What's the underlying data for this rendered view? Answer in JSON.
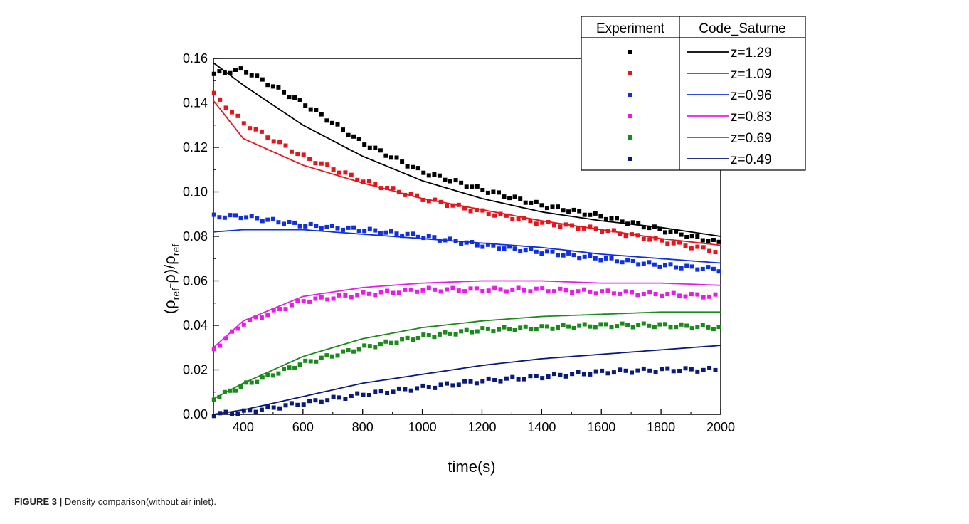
{
  "caption": {
    "label": "FIGURE 3 |",
    "text": " Density comparison(without air inlet)."
  },
  "chart_data": {
    "type": "line",
    "xlabel": "time(s)",
    "ylabel": {
      "rho1": "(ρ",
      "sub1": "ref",
      "mid": "-ρ)/ρ",
      "sub2": "ref"
    },
    "xlim": [
      300,
      2000
    ],
    "ylim": [
      0,
      0.16
    ],
    "xticks": [
      "400",
      "600",
      "800",
      "1000",
      "1200",
      "1400",
      "1600",
      "1800",
      "2000"
    ],
    "xtick_values": [
      400,
      600,
      800,
      1000,
      1200,
      1400,
      1600,
      1800,
      2000
    ],
    "yticks": [
      "0.00",
      "0.02",
      "0.04",
      "0.06",
      "0.08",
      "0.10",
      "0.12",
      "0.14",
      "0.16"
    ],
    "ytick_values": [
      0,
      0.02,
      0.04,
      0.06,
      0.08,
      0.1,
      0.12,
      0.14,
      0.16
    ],
    "legend": {
      "col1": "Experiment",
      "col2": "Code_Saturne",
      "placement": "top-right"
    },
    "series": [
      {
        "name": "z=1.29",
        "color": "#000000",
        "sim": {
          "x": [
            300,
            400,
            600,
            800,
            1000,
            1200,
            1400,
            1600,
            1800,
            2000
          ],
          "y": [
            0.158,
            0.148,
            0.13,
            0.116,
            0.105,
            0.097,
            0.091,
            0.087,
            0.084,
            0.08
          ]
        },
        "exp": {
          "x": [
            300,
            400,
            600,
            800,
            1000,
            1200,
            1400,
            1600,
            1800,
            2000
          ],
          "y": [
            0.153,
            0.155,
            0.14,
            0.122,
            0.109,
            0.101,
            0.094,
            0.089,
            0.083,
            0.077
          ]
        }
      },
      {
        "name": "z=1.09",
        "color": "#e8141c",
        "sim": {
          "x": [
            300,
            400,
            600,
            800,
            1000,
            1200,
            1400,
            1600,
            1800,
            2000
          ],
          "y": [
            0.141,
            0.124,
            0.112,
            0.104,
            0.097,
            0.092,
            0.087,
            0.083,
            0.079,
            0.076
          ]
        },
        "exp": {
          "x": [
            300,
            400,
            600,
            800,
            1000,
            1200,
            1400,
            1600,
            1800,
            2000
          ],
          "y": [
            0.144,
            0.131,
            0.116,
            0.105,
            0.097,
            0.091,
            0.086,
            0.083,
            0.078,
            0.073
          ]
        }
      },
      {
        "name": "z=0.96",
        "color": "#1030e0",
        "sim": {
          "x": [
            300,
            400,
            600,
            800,
            1000,
            1200,
            1400,
            1600,
            1800,
            2000
          ],
          "y": [
            0.082,
            0.083,
            0.083,
            0.081,
            0.079,
            0.077,
            0.075,
            0.072,
            0.07,
            0.068
          ]
        },
        "exp": {
          "x": [
            300,
            400,
            600,
            800,
            1000,
            1200,
            1400,
            1600,
            1800,
            2000
          ],
          "y": [
            0.089,
            0.089,
            0.085,
            0.083,
            0.08,
            0.076,
            0.073,
            0.07,
            0.067,
            0.065
          ]
        }
      },
      {
        "name": "z=0.83",
        "color": "#e81ce8",
        "sim": {
          "x": [
            300,
            400,
            600,
            800,
            1000,
            1200,
            1400,
            1600,
            1800,
            2000
          ],
          "y": [
            0.03,
            0.042,
            0.053,
            0.057,
            0.059,
            0.06,
            0.06,
            0.059,
            0.059,
            0.058
          ]
        },
        "exp": {
          "x": [
            300,
            400,
            600,
            800,
            1000,
            1200,
            1400,
            1600,
            1800,
            2000
          ],
          "y": [
            0.029,
            0.041,
            0.051,
            0.054,
            0.056,
            0.056,
            0.056,
            0.055,
            0.054,
            0.053
          ]
        }
      },
      {
        "name": "z=0.69",
        "color": "#1a8a1a",
        "sim": {
          "x": [
            300,
            400,
            600,
            800,
            1000,
            1200,
            1400,
            1600,
            1800,
            2000
          ],
          "y": [
            0.007,
            0.014,
            0.026,
            0.034,
            0.039,
            0.042,
            0.044,
            0.045,
            0.046,
            0.046
          ]
        },
        "exp": {
          "x": [
            300,
            400,
            600,
            800,
            1000,
            1200,
            1400,
            1600,
            1800,
            2000
          ],
          "y": [
            0.007,
            0.013,
            0.023,
            0.03,
            0.035,
            0.038,
            0.039,
            0.04,
            0.04,
            0.039
          ]
        }
      },
      {
        "name": "z=0.49",
        "color": "#0a1a7a",
        "sim": {
          "x": [
            300,
            400,
            600,
            800,
            1000,
            1200,
            1400,
            1600,
            1800,
            2000
          ],
          "y": [
            0.0,
            0.002,
            0.008,
            0.014,
            0.018,
            0.022,
            0.025,
            0.027,
            0.029,
            0.031
          ]
        },
        "exp": {
          "x": [
            300,
            400,
            600,
            800,
            1000,
            1200,
            1400,
            1600,
            1800,
            2000
          ],
          "y": [
            0.0,
            0.001,
            0.005,
            0.009,
            0.012,
            0.015,
            0.017,
            0.019,
            0.02,
            0.02
          ]
        }
      }
    ]
  }
}
